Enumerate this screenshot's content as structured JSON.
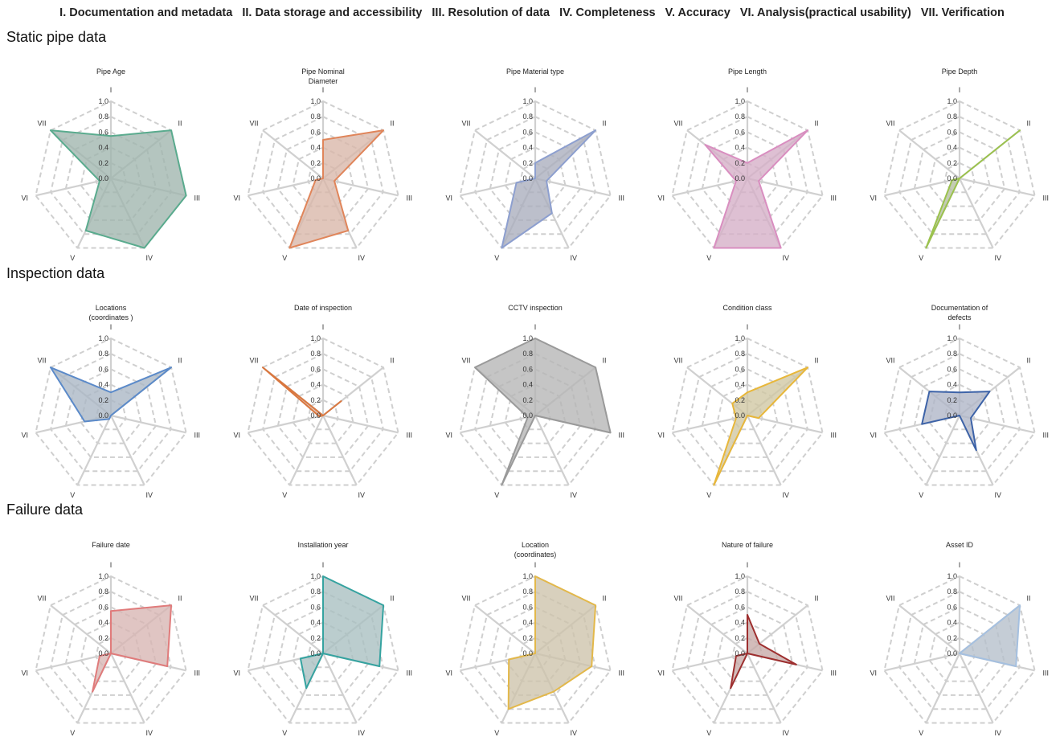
{
  "legend": [
    "I. Documentation and metadata",
    "II. Data storage and accessibility",
    "III. Resolution of data",
    "IV. Completeness",
    "V. Accuracy",
    "VI. Analysis(practical usability)",
    "VII. Verification"
  ],
  "sections": [
    {
      "title": "Static pipe data"
    },
    {
      "title": "Inspection data"
    },
    {
      "title": "Failure data"
    }
  ],
  "axes": [
    "I",
    "II",
    "III",
    "IV",
    "V",
    "VI",
    "VII"
  ],
  "ticks": [
    "0.0",
    "0.2",
    "0.4",
    "0.6",
    "0.8",
    "1.0"
  ],
  "chart_data": [
    {
      "type": "radar",
      "section": 0,
      "title": [
        "Pipe Age"
      ],
      "color": "#5aab8e",
      "fill": "#9fb5ad",
      "values": [
        0.55,
        1.0,
        1.0,
        1.0,
        0.75,
        0.15,
        1.0
      ],
      "rlim": [
        0,
        1
      ]
    },
    {
      "type": "radar",
      "section": 0,
      "title": [
        "Pipe Nominal",
        "Diameter"
      ],
      "color": "#e0855a",
      "fill": "#d9b6a8",
      "values": [
        0.5,
        1.0,
        0.15,
        0.75,
        1.0,
        0.1,
        0.0
      ],
      "rlim": [
        0,
        1
      ]
    },
    {
      "type": "radar",
      "section": 0,
      "title": [
        "Pipe Material type"
      ],
      "color": "#8d9fcf",
      "fill": "#a9adbd",
      "values": [
        0.2,
        1.0,
        0.15,
        0.5,
        1.0,
        0.25,
        0.0
      ],
      "rlim": [
        0,
        1
      ]
    },
    {
      "type": "radar",
      "section": 0,
      "title": [
        "Pipe Length"
      ],
      "color": "#d98ec0",
      "fill": "#d5aec7",
      "values": [
        0.2,
        1.0,
        0.15,
        1.0,
        1.0,
        0.15,
        0.7
      ],
      "rlim": [
        0,
        1
      ]
    },
    {
      "type": "radar",
      "section": 0,
      "title": [
        "Pipe Depth"
      ],
      "color": "#9bc24d",
      "fill": "#b3bea0",
      "values": [
        0.0,
        1.0,
        0.0,
        0.0,
        1.0,
        0.1,
        0.0
      ],
      "rlim": [
        0,
        1
      ]
    },
    {
      "type": "radar",
      "section": 1,
      "title": [
        "Locations",
        "(coordinates )"
      ],
      "color": "#5b8ac9",
      "fill": "#a9b6c4",
      "values": [
        0.3,
        1.0,
        0.0,
        0.0,
        0.05,
        0.35,
        1.0
      ],
      "rlim": [
        0,
        1
      ]
    },
    {
      "type": "radar",
      "section": 1,
      "title": [
        "Date of inspection"
      ],
      "color": "#d9773f",
      "fill": "#d8b5a5",
      "values": [
        0.0,
        0.3,
        0.0,
        0.0,
        0.0,
        0.05,
        1.0
      ],
      "rlim": [
        0,
        1
      ]
    },
    {
      "type": "radar",
      "section": 1,
      "title": [
        "CCTV inspection"
      ],
      "color": "#9a9a9a",
      "fill": "#b5b5b5",
      "values": [
        1.0,
        1.0,
        1.0,
        0.0,
        1.0,
        0.1,
        1.0
      ],
      "rlim": [
        0,
        1
      ]
    },
    {
      "type": "radar",
      "section": 1,
      "title": [
        "Condition class"
      ],
      "color": "#e8b73a",
      "fill": "#cfc6a2",
      "values": [
        0.3,
        1.0,
        0.15,
        0.0,
        1.0,
        0.15,
        0.25
      ],
      "rlim": [
        0,
        1
      ]
    },
    {
      "type": "radar",
      "section": 1,
      "title": [
        "Documentation of",
        "defects"
      ],
      "color": "#3d63a8",
      "fill": "#aeb5c6",
      "values": [
        0.3,
        0.5,
        0.15,
        0.5,
        0.0,
        0.5,
        0.5
      ],
      "rlim": [
        0,
        1
      ]
    },
    {
      "type": "radar",
      "section": 2,
      "title": [
        "Failure date"
      ],
      "color": "#e07b7b",
      "fill": "#d7b5b2",
      "values": [
        0.55,
        1.0,
        0.75,
        0.0,
        0.55,
        0.15,
        0.0
      ],
      "rlim": [
        0,
        1
      ]
    },
    {
      "type": "radar",
      "section": 2,
      "title": [
        "Installation year"
      ],
      "color": "#35a3a0",
      "fill": "#a8bfc0",
      "values": [
        1.0,
        1.0,
        0.75,
        0.0,
        0.5,
        0.3,
        0.0
      ],
      "rlim": [
        0,
        1
      ]
    },
    {
      "type": "radar",
      "section": 2,
      "title": [
        "Location",
        "(coordinates)"
      ],
      "color": "#e3b84a",
      "fill": "#cdc3ab",
      "values": [
        1.0,
        1.0,
        0.75,
        0.55,
        0.8,
        0.35,
        0.0
      ],
      "rlim": [
        0,
        1
      ]
    },
    {
      "type": "radar",
      "section": 2,
      "title": [
        "Nature of failure"
      ],
      "color": "#9e2f2f",
      "fill": "#c6a9a6",
      "values": [
        0.5,
        0.2,
        0.65,
        0.0,
        0.5,
        0.15,
        0.0
      ],
      "rlim": [
        0,
        1
      ]
    },
    {
      "type": "radar",
      "section": 2,
      "title": [
        "Asset ID"
      ],
      "color": "#a5c0e0",
      "fill": "#b5bfca",
      "values": [
        0.0,
        1.0,
        0.75,
        0.0,
        0.0,
        0.0,
        0.0
      ],
      "rlim": [
        0,
        1
      ]
    }
  ]
}
